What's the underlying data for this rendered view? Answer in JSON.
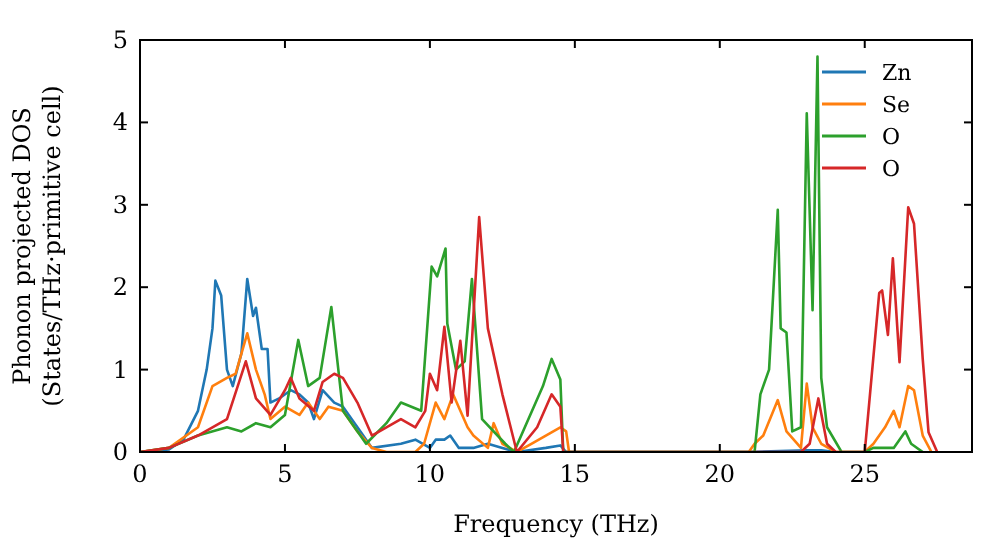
{
  "chart_data": {
    "type": "line",
    "xlabel": "Frequency (THz)",
    "ylabel": "Phonon projected DOS\n(States/THz·primitive cell)",
    "xlim": [
      0,
      28.7
    ],
    "ylim": [
      0,
      5
    ],
    "xticks": [
      0,
      5,
      10,
      15,
      20,
      25
    ],
    "yticks": [
      0,
      1,
      2,
      3,
      4,
      5
    ],
    "legend": "top right",
    "grid": false,
    "series": [
      {
        "name": "Zn",
        "color": "#1f77b4",
        "x": [
          0,
          1,
          1.5,
          2,
          2.3,
          2.5,
          2.6,
          2.8,
          3.0,
          3.2,
          3.5,
          3.7,
          3.9,
          4.0,
          4.2,
          4.4,
          4.5,
          4.8,
          5.2,
          5.5,
          5.8,
          6.0,
          6.3,
          6.7,
          7,
          7.5,
          8,
          9,
          9.5,
          10,
          10.2,
          10.5,
          10.7,
          11,
          11.5,
          12,
          12.5,
          13,
          14,
          14.5,
          14.7,
          21,
          23,
          23.5,
          24
        ],
        "values": [
          0,
          0.03,
          0.15,
          0.5,
          1.0,
          1.5,
          2.08,
          1.9,
          1.0,
          0.8,
          1.2,
          2.1,
          1.65,
          1.75,
          1.25,
          1.25,
          0.6,
          0.65,
          0.75,
          0.7,
          0.6,
          0.4,
          0.75,
          0.6,
          0.55,
          0.3,
          0.05,
          0.1,
          0.15,
          0.05,
          0.15,
          0.15,
          0.2,
          0.05,
          0.05,
          0.1,
          0.05,
          0,
          0.05,
          0.08,
          0,
          0,
          0.02,
          0.02,
          0
        ]
      },
      {
        "name": "Se",
        "color": "#ff7f0e",
        "x": [
          0,
          1,
          2,
          2.5,
          3,
          3.3,
          3.7,
          4.0,
          4.3,
          4.5,
          5,
          5.5,
          5.8,
          6.2,
          6.5,
          7,
          7.5,
          8,
          8.5,
          9.5,
          9.8,
          10.2,
          10.5,
          10.8,
          11.3,
          11.5,
          12,
          12.2,
          12.5,
          13,
          13.5,
          14,
          14.5,
          14.7,
          14.8,
          21,
          21.2,
          21.5,
          22,
          22.3,
          22.8,
          23,
          23.2,
          23.5,
          24,
          25,
          25.3,
          25.7,
          26,
          26.2,
          26.5,
          26.7,
          27,
          27.3
        ],
        "values": [
          0,
          0.05,
          0.3,
          0.8,
          0.9,
          0.95,
          1.44,
          1.0,
          0.7,
          0.4,
          0.55,
          0.45,
          0.6,
          0.4,
          0.55,
          0.5,
          0.25,
          0.05,
          0,
          0,
          0.1,
          0.6,
          0.4,
          0.7,
          0.3,
          0.2,
          0.05,
          0.35,
          0.1,
          0,
          0.1,
          0.2,
          0.3,
          0.25,
          0,
          0,
          0.1,
          0.2,
          0.63,
          0.25,
          0.05,
          0.83,
          0.3,
          0.1,
          0,
          0,
          0.1,
          0.3,
          0.5,
          0.3,
          0.8,
          0.75,
          0.2,
          0
        ]
      },
      {
        "name": "O",
        "color": "#2ca02c",
        "x": [
          0,
          1,
          2,
          3,
          3.5,
          4,
          4.5,
          5,
          5.46,
          5.8,
          6.2,
          6.6,
          7,
          7.8,
          8.5,
          9,
          9.7,
          10.06,
          10.25,
          10.54,
          10.6,
          10.9,
          11.2,
          11.45,
          11.8,
          12.6,
          12.9,
          13.9,
          14.2,
          14.5,
          14.6,
          21.2,
          21.4,
          21.7,
          22.0,
          22.1,
          22.3,
          22.5,
          22.8,
          23.0,
          23.2,
          23.37,
          23.5,
          23.7,
          24.2,
          25,
          25.3,
          26,
          26.4,
          26.6,
          27
        ],
        "values": [
          0,
          0.05,
          0.2,
          0.3,
          0.25,
          0.35,
          0.3,
          0.45,
          1.36,
          0.8,
          0.9,
          1.76,
          0.5,
          0.1,
          0.35,
          0.6,
          0.5,
          2.25,
          2.13,
          2.47,
          1.56,
          1.0,
          1.1,
          2.1,
          0.4,
          0.1,
          0,
          0.8,
          1.13,
          0.88,
          0,
          0,
          0.7,
          1.0,
          2.94,
          1.5,
          1.45,
          0.25,
          0.3,
          4.11,
          1.72,
          4.8,
          0.9,
          0.3,
          0,
          0,
          0.05,
          0.05,
          0.25,
          0.1,
          0
        ]
      },
      {
        "name": "O",
        "color": "#d62728",
        "x": [
          0,
          1,
          2,
          3,
          3.65,
          4,
          4.5,
          5,
          5.2,
          5.5,
          6,
          6.3,
          6.7,
          7,
          7.5,
          8,
          8.5,
          9,
          9.5,
          9.84,
          10.0,
          10.25,
          10.5,
          10.75,
          11.05,
          11.3,
          11.7,
          12.0,
          12.5,
          13.0,
          13.7,
          14.2,
          14.5,
          14.6,
          22.8,
          23.1,
          23.4,
          23.7,
          24.0,
          25.0,
          25.5,
          25.6,
          25.8,
          25.97,
          26.2,
          26.5,
          26.7,
          27.0,
          27.2,
          27.5
        ],
        "values": [
          0,
          0.05,
          0.2,
          0.4,
          1.1,
          0.65,
          0.45,
          0.75,
          0.9,
          0.65,
          0.5,
          0.85,
          0.95,
          0.9,
          0.6,
          0.2,
          0.3,
          0.4,
          0.3,
          0.5,
          0.95,
          0.75,
          1.52,
          0.6,
          1.35,
          0.44,
          2.85,
          1.5,
          0.7,
          0,
          0.3,
          0.7,
          0.55,
          0,
          0,
          0.1,
          0.65,
          0.1,
          0,
          0,
          1.93,
          1.96,
          1.42,
          2.35,
          1.09,
          2.97,
          2.77,
          1.13,
          0.24,
          0
        ]
      }
    ]
  }
}
